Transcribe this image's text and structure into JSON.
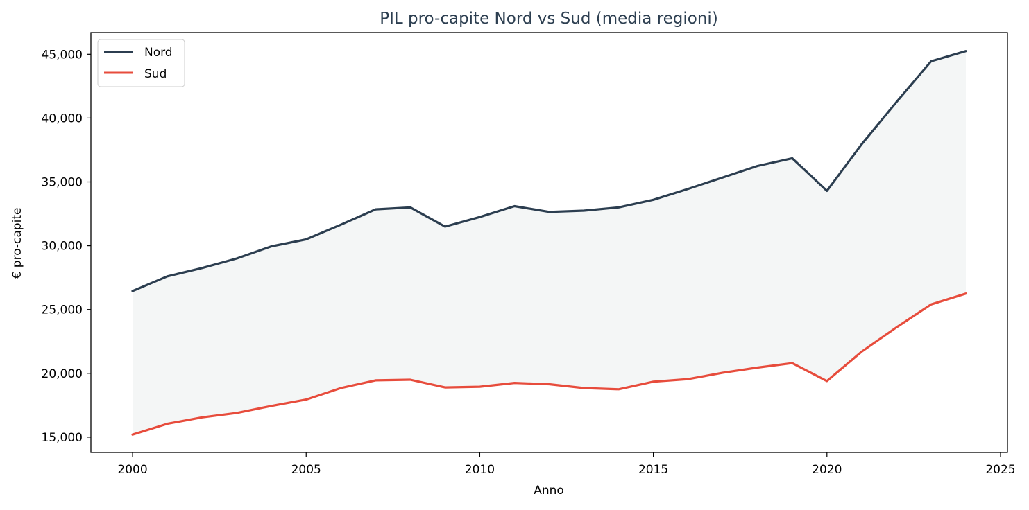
{
  "chart_data": {
    "type": "line",
    "title": "PIL pro-capite Nord vs Sud (media regioni)",
    "xlabel": "Anno",
    "ylabel": "€ pro-capite",
    "x": [
      2000,
      2001,
      2002,
      2003,
      2004,
      2005,
      2006,
      2007,
      2008,
      2009,
      2010,
      2011,
      2012,
      2013,
      2014,
      2015,
      2016,
      2017,
      2018,
      2019,
      2020,
      2021,
      2022,
      2023,
      2024
    ],
    "series": [
      {
        "name": "Nord",
        "color": "#2c3e50",
        "values": [
          26450,
          27600,
          28250,
          29000,
          29950,
          30500,
          31650,
          32850,
          33000,
          31500,
          32250,
          33100,
          32650,
          32750,
          33000,
          33600,
          34450,
          35350,
          36250,
          36850,
          34300,
          37950,
          41250,
          44450,
          45250
        ]
      },
      {
        "name": "Sud",
        "color": "#e74c3c",
        "values": [
          15200,
          16050,
          16550,
          16900,
          17450,
          17950,
          18850,
          19450,
          19500,
          18900,
          18950,
          19250,
          19150,
          18850,
          18750,
          19350,
          19550,
          20050,
          20450,
          20800,
          19400,
          21700,
          23600,
          25400,
          26250
        ]
      }
    ],
    "fill_between": {
      "series": [
        "Nord",
        "Sud"
      ],
      "color": "#dfe5e4"
    },
    "xlim": [
      1998.8,
      2025.2
    ],
    "ylim": [
      13800,
      46700
    ],
    "xticks": [
      2000,
      2005,
      2010,
      2015,
      2020,
      2025
    ],
    "xtick_labels": [
      "2000",
      "2005",
      "2010",
      "2015",
      "2020",
      "2025"
    ],
    "yticks": [
      15000,
      20000,
      25000,
      30000,
      35000,
      40000,
      45000
    ],
    "ytick_labels": [
      "15,000",
      "20,000",
      "25,000",
      "30,000",
      "35,000",
      "40,000",
      "45,000"
    ],
    "grid": false,
    "legend_position": "top-left",
    "title_color": "#2c3e50"
  }
}
